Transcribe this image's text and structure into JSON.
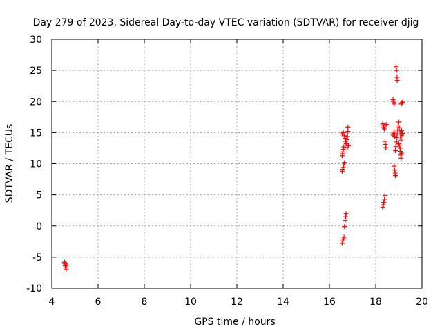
{
  "chart_data": {
    "type": "scatter",
    "title": "Day 279 of 2023, Sidereal Day-to-day VTEC variation (SDTVAR) for receiver djig",
    "xlabel": "GPS time / hours",
    "ylabel": "SDTVAR / TECUs",
    "xlim": [
      4,
      20
    ],
    "ylim": [
      -10,
      30
    ],
    "x_ticks": [
      4,
      6,
      8,
      10,
      12,
      14,
      16,
      18,
      20
    ],
    "y_ticks": [
      -10,
      -5,
      0,
      5,
      10,
      15,
      20,
      25,
      30
    ],
    "x_tick_labels": [
      "4",
      "6",
      "8",
      "10",
      "12",
      "14",
      "16",
      "18",
      "20"
    ],
    "y_tick_labels": [
      "-10",
      "-5",
      "0",
      "5",
      "10",
      "15",
      "20",
      "25",
      "30"
    ],
    "grid": true,
    "marker": "plus",
    "marker_color": "#ff0000",
    "series": [
      {
        "points": [
          [
            4.55,
            -5.8
          ],
          [
            4.57,
            -6.1
          ],
          [
            4.58,
            -6.4
          ],
          [
            4.6,
            -6.7
          ],
          [
            4.62,
            -7.0
          ],
          [
            4.6,
            -6.0
          ],
          [
            4.63,
            -6.3
          ],
          [
            16.55,
            8.8
          ],
          [
            16.57,
            9.1
          ],
          [
            16.6,
            9.4
          ],
          [
            16.62,
            9.8
          ],
          [
            16.65,
            10.2
          ],
          [
            16.55,
            11.3
          ],
          [
            16.57,
            11.6
          ],
          [
            16.58,
            11.9
          ],
          [
            16.6,
            12.3
          ],
          [
            16.62,
            12.7
          ],
          [
            16.55,
            14.8
          ],
          [
            16.6,
            15.0
          ],
          [
            16.65,
            14.5
          ],
          [
            16.68,
            14.1
          ],
          [
            16.7,
            13.6
          ],
          [
            16.72,
            13.2
          ],
          [
            16.75,
            13.9
          ],
          [
            16.78,
            14.4
          ],
          [
            16.8,
            15.2
          ],
          [
            16.8,
            15.9
          ],
          [
            16.82,
            13.0
          ],
          [
            16.77,
            12.6
          ],
          [
            16.55,
            -2.8
          ],
          [
            16.57,
            -2.4
          ],
          [
            16.6,
            -2.1
          ],
          [
            16.63,
            -1.8
          ],
          [
            16.65,
            -0.1
          ],
          [
            16.68,
            0.9
          ],
          [
            16.7,
            1.5
          ],
          [
            16.72,
            2.0
          ],
          [
            18.3,
            3.0
          ],
          [
            18.33,
            3.4
          ],
          [
            18.35,
            3.8
          ],
          [
            18.38,
            4.3
          ],
          [
            18.4,
            4.9
          ],
          [
            18.3,
            16.4
          ],
          [
            18.33,
            16.1
          ],
          [
            18.35,
            15.8
          ],
          [
            18.37,
            15.6
          ],
          [
            18.4,
            13.6
          ],
          [
            18.42,
            13.1
          ],
          [
            18.44,
            12.6
          ],
          [
            18.45,
            16.3
          ],
          [
            18.75,
            20.3
          ],
          [
            18.78,
            19.9
          ],
          [
            18.8,
            19.6
          ],
          [
            18.75,
            14.6
          ],
          [
            18.78,
            14.9
          ],
          [
            18.8,
            15.1
          ],
          [
            18.82,
            14.4
          ],
          [
            18.8,
            9.6
          ],
          [
            18.82,
            9.0
          ],
          [
            18.84,
            8.5
          ],
          [
            18.85,
            8.1
          ],
          [
            18.85,
            12.1
          ],
          [
            18.87,
            12.8
          ],
          [
            18.9,
            13.5
          ],
          [
            18.88,
            25.6
          ],
          [
            18.9,
            25.0
          ],
          [
            18.92,
            23.9
          ],
          [
            18.93,
            23.4
          ],
          [
            18.9,
            14.2
          ],
          [
            18.93,
            14.8
          ],
          [
            18.95,
            15.4
          ],
          [
            18.97,
            16.1
          ],
          [
            19.0,
            16.7
          ],
          [
            19.02,
            15.8
          ],
          [
            19.05,
            15.1
          ],
          [
            19.07,
            14.3
          ],
          [
            19.0,
            13.2
          ],
          [
            19.02,
            12.9
          ],
          [
            19.05,
            12.5
          ],
          [
            19.07,
            12.0
          ],
          [
            19.08,
            11.4
          ],
          [
            19.1,
            10.9
          ],
          [
            19.12,
            11.7
          ],
          [
            19.1,
            13.8
          ],
          [
            19.12,
            15.3
          ],
          [
            19.13,
            14.6
          ],
          [
            19.15,
            14.9
          ],
          [
            19.1,
            19.6
          ],
          [
            19.13,
            19.8
          ],
          [
            19.16,
            19.9
          ]
        ]
      }
    ]
  }
}
